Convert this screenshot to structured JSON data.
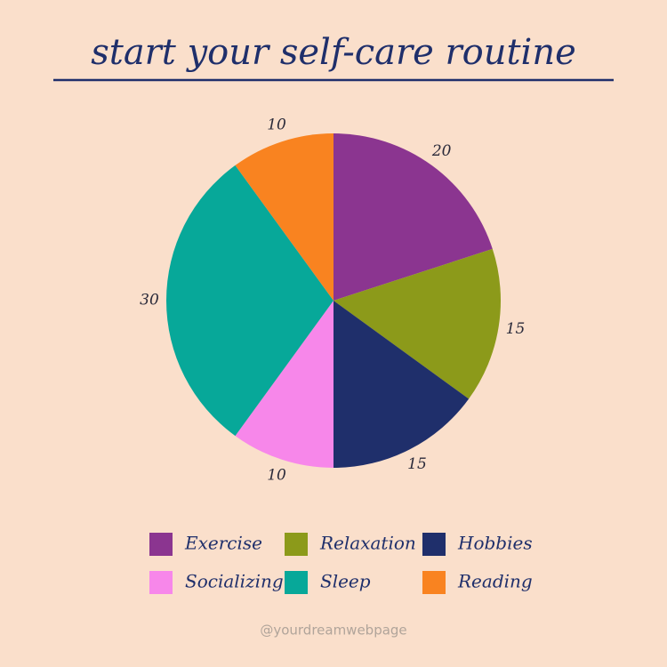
{
  "chart_data": {
    "type": "pie",
    "title": "start your self-care routine",
    "categories": [
      "Exercise",
      "Relaxation",
      "Hobbies",
      "Socializing",
      "Sleep",
      "Reading"
    ],
    "values": [
      20,
      15,
      15,
      10,
      30,
      10
    ],
    "colors": [
      "#8b3590",
      "#8c9a1a",
      "#1f2f6b",
      "#f787ea",
      "#07a899",
      "#f98320"
    ],
    "legend": "bottom"
  },
  "footer": "@yourdreamwebpage"
}
